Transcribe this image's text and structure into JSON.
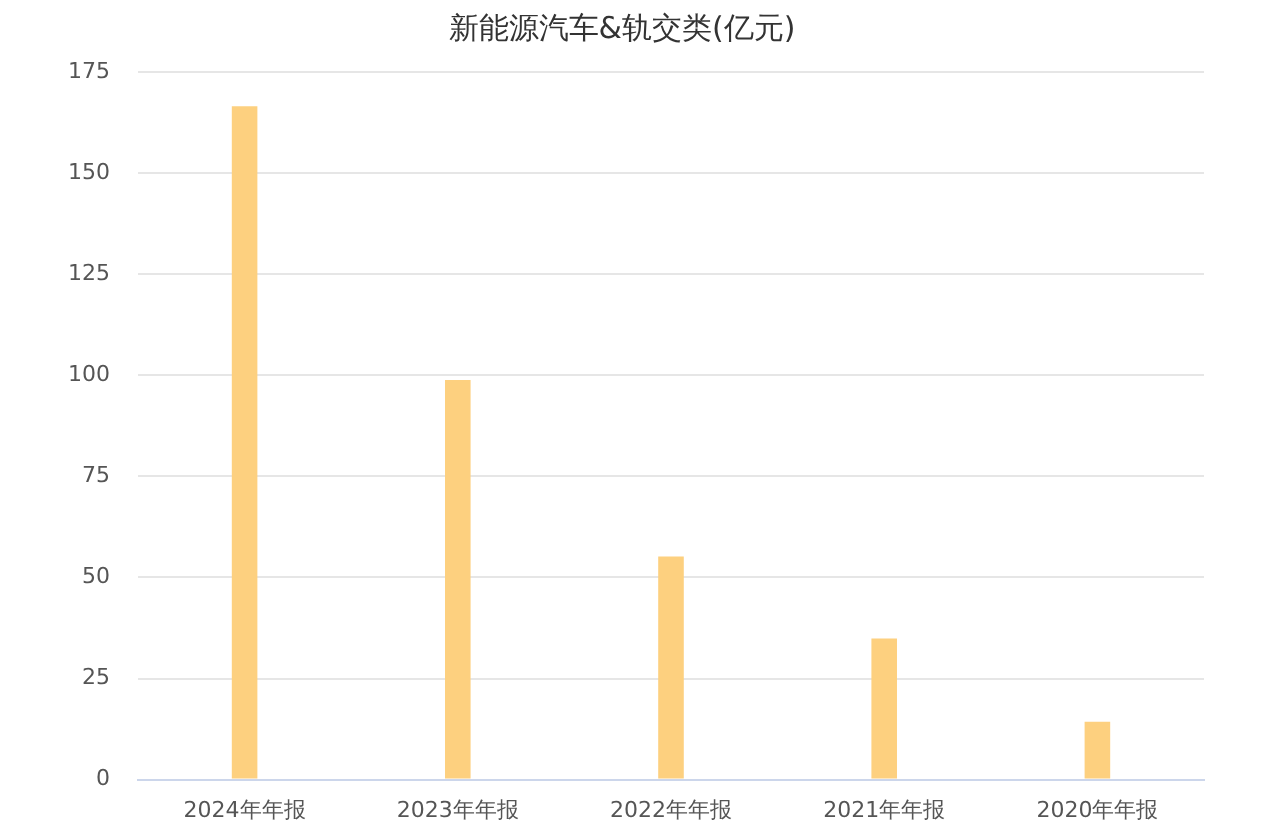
{
  "chart_data": {
    "type": "bar",
    "title": "新能源汽车&轨交类(亿元)",
    "categories": [
      "2024年年报",
      "2023年年报",
      "2022年年报",
      "2021年年报",
      "2020年年报"
    ],
    "values": [
      166.5,
      98.8,
      55.2,
      34.9,
      14.3
    ],
    "color": "#fdd07f",
    "ylim": [
      0,
      175
    ],
    "yticks": [
      0,
      25,
      50,
      75,
      100,
      125,
      150,
      175
    ],
    "grid": "y",
    "legend": false
  }
}
